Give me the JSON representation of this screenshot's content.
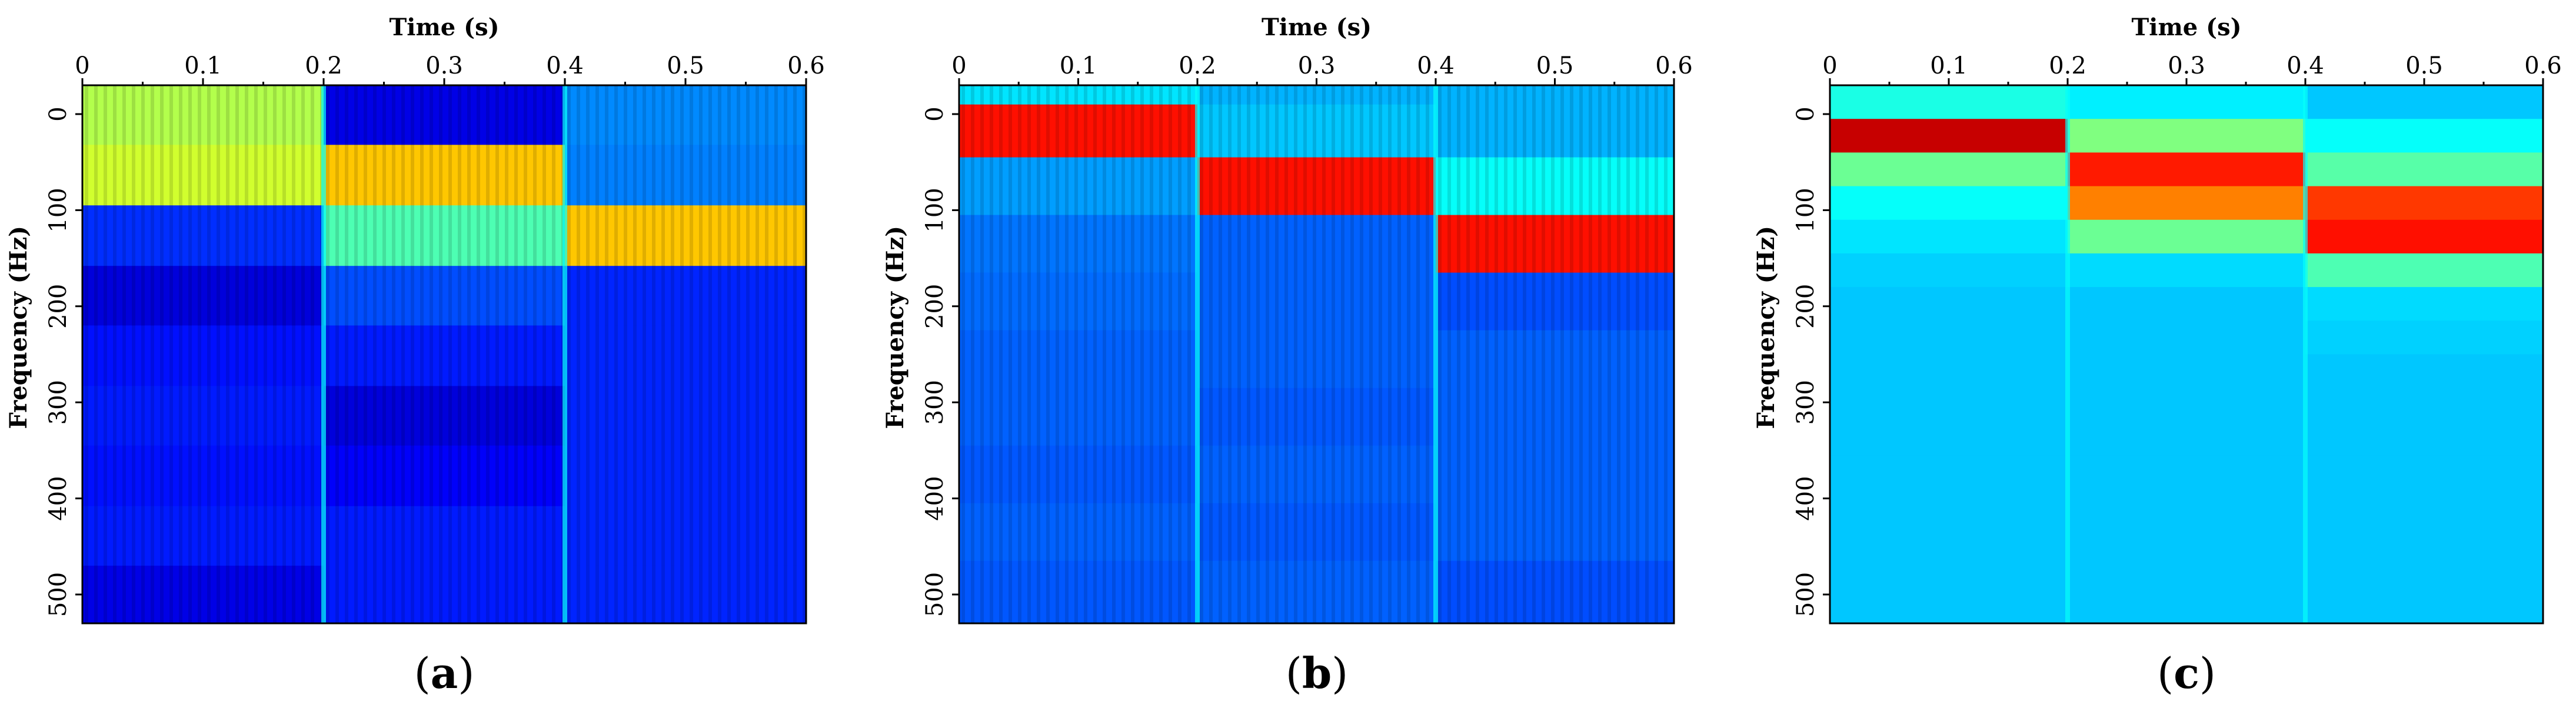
{
  "chart_data": [
    {
      "type": "heatmap",
      "panel": "(a)",
      "caption": {
        "open": "(",
        "letter": "a",
        "close": ")"
      },
      "xlabel": "Time (s)",
      "ylabel": "Frequency (Hz)",
      "xticks": [
        "0",
        "0.1",
        "0.2",
        "0.3",
        "0.4",
        "0.5",
        "0.6"
      ],
      "yticks": [
        "0",
        "100",
        "200",
        "300",
        "400",
        "500"
      ],
      "xlim": [
        0,
        0.6
      ],
      "ylim": [
        -30,
        530
      ],
      "colormap": "jet",
      "value_range": [
        0,
        1
      ],
      "time_edges": [
        0,
        0.2,
        0.4,
        0.6
      ],
      "freq_edges": [
        -30,
        32,
        95,
        158,
        220,
        283,
        345,
        408,
        470,
        530
      ],
      "stripes": [
        1,
        1,
        1
      ],
      "values": [
        [
          0.55,
          0.1,
          0.26
        ],
        [
          0.58,
          0.68,
          0.25
        ],
        [
          0.17,
          0.45,
          0.68
        ],
        [
          0.09,
          0.2,
          0.16
        ],
        [
          0.14,
          0.15,
          0.16
        ],
        [
          0.15,
          0.09,
          0.16
        ],
        [
          0.14,
          0.12,
          0.16
        ],
        [
          0.15,
          0.15,
          0.16
        ],
        [
          0.1,
          0.15,
          0.16
        ]
      ]
    },
    {
      "type": "heatmap",
      "panel": "(b)",
      "caption": {
        "open": "(",
        "letter": "b",
        "close": ")"
      },
      "xlabel": "Time (s)",
      "ylabel": "Frequency (Hz)",
      "xticks": [
        "0",
        "0.1",
        "0.2",
        "0.3",
        "0.4",
        "0.5",
        "0.6"
      ],
      "yticks": [
        "0",
        "100",
        "200",
        "300",
        "400",
        "500"
      ],
      "xlim": [
        0,
        0.6
      ],
      "ylim": [
        -30,
        530
      ],
      "colormap": "jet",
      "value_range": [
        0,
        1
      ],
      "time_edges": [
        0,
        0.2,
        0.4,
        0.6
      ],
      "freq_edges": [
        -30,
        -10,
        45,
        105,
        165,
        225,
        285,
        345,
        405,
        465,
        530
      ],
      "stripes": [
        1,
        1,
        1
      ],
      "values": [
        [
          0.35,
          0.3,
          0.3
        ],
        [
          0.86,
          0.32,
          0.3
        ],
        [
          0.28,
          0.86,
          0.38
        ],
        [
          0.24,
          0.22,
          0.86
        ],
        [
          0.23,
          0.22,
          0.2
        ],
        [
          0.22,
          0.22,
          0.22
        ],
        [
          0.22,
          0.21,
          0.22
        ],
        [
          0.21,
          0.22,
          0.22
        ],
        [
          0.22,
          0.21,
          0.22
        ],
        [
          0.21,
          0.22,
          0.2
        ]
      ]
    },
    {
      "type": "heatmap",
      "panel": "(c)",
      "caption": {
        "open": "(",
        "letter": "c",
        "close": ")"
      },
      "xlabel": "Time (s)",
      "ylabel": "Frequency (Hz)",
      "xticks": [
        "0",
        "0.1",
        "0.2",
        "0.3",
        "0.4",
        "0.5",
        "0.6"
      ],
      "yticks": [
        "0",
        "100",
        "200",
        "300",
        "400",
        "500"
      ],
      "xlim": [
        0,
        0.6
      ],
      "ylim": [
        -30,
        530
      ],
      "colormap": "jet",
      "value_range": [
        0,
        1
      ],
      "time_edges": [
        0,
        0.2,
        0.4,
        0.6
      ],
      "freq_edges": [
        -30,
        5,
        40,
        75,
        110,
        145,
        180,
        215,
        250,
        285,
        320,
        355,
        390,
        425,
        460,
        495,
        530
      ],
      "stripes": [
        0,
        0,
        0
      ],
      "values": [
        [
          0.4,
          0.36,
          0.32
        ],
        [
          0.93,
          0.5,
          0.38
        ],
        [
          0.48,
          0.85,
          0.46
        ],
        [
          0.38,
          0.75,
          0.82
        ],
        [
          0.35,
          0.48,
          0.86
        ],
        [
          0.33,
          0.34,
          0.45
        ],
        [
          0.32,
          0.32,
          0.34
        ],
        [
          0.32,
          0.32,
          0.33
        ],
        [
          0.32,
          0.32,
          0.32
        ],
        [
          0.32,
          0.32,
          0.32
        ],
        [
          0.32,
          0.32,
          0.32
        ],
        [
          0.32,
          0.32,
          0.32
        ],
        [
          0.32,
          0.32,
          0.32
        ],
        [
          0.32,
          0.32,
          0.32
        ],
        [
          0.32,
          0.32,
          0.32
        ],
        [
          0.32,
          0.32,
          0.32
        ]
      ]
    }
  ]
}
